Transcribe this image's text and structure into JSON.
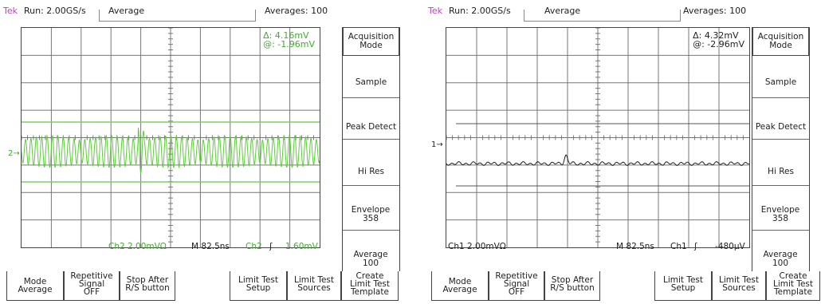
{
  "scopes": [
    {
      "header": {
        "brand": "Tek",
        "run": "Run: 2.00GS/s",
        "mode": "Average",
        "averages": "Averages: 100"
      },
      "measurement": {
        "delta": "Δ: 4.16mV",
        "at": "@: -1.96mV"
      },
      "status": {
        "channel": "Ch2  2.00mVΩ",
        "timebase": "M 82.5ns",
        "trigger_src": "Ch2",
        "trigger_sym": "ʃ",
        "trigger_level": "1.60mV"
      },
      "channel_marker": "2→",
      "side_menu": [
        "Acquisition Mode",
        "Sample",
        "Peak Detect",
        "Hi Res",
        "Envelope 358",
        "Average 100"
      ],
      "bottom_menu": [
        [
          "Mode",
          "Average"
        ],
        [
          "Repetitive",
          "Signal",
          "OFF"
        ],
        [
          "Stop After",
          "R/S button"
        ],
        [
          "Limit Test",
          "Setup"
        ],
        [
          "Limit Test",
          "Sources"
        ],
        [
          "Create",
          "Limit Test",
          "Template"
        ]
      ],
      "colors": {
        "trace": "#5dcc3a",
        "text": "#44aa33",
        "cursor": "#7fcf6a"
      }
    },
    {
      "header": {
        "brand": "Tek",
        "run": "Run: 2.00GS/s",
        "mode": "Average",
        "averages": "Averages: 100"
      },
      "measurement": {
        "delta": "Δ: 4.32mV",
        "at": "@: -2.96mV"
      },
      "status": {
        "channel": "Ch1  2.00mVΩ",
        "timebase": "M 82.5ns",
        "trigger_src": "Ch1",
        "trigger_sym": "ʃ",
        "trigger_level": "-480µV"
      },
      "channel_marker": "1→",
      "side_menu": [
        "Acquisition Mode",
        "Sample",
        "Peak Detect",
        "Hi Res",
        "Envelope 358",
        "Average 100"
      ],
      "bottom_menu": [
        [
          "Mode",
          "Average"
        ],
        [
          "Repetitive",
          "Signal",
          "OFF"
        ],
        [
          "Stop After",
          "R/S button"
        ],
        [
          "Limit Test",
          "Setup"
        ],
        [
          "Limit Test",
          "Sources"
        ],
        [
          "Create",
          "Limit Test",
          "Template"
        ]
      ],
      "colors": {
        "trace": "#222222",
        "text": "#222222",
        "cursor": "#555555"
      }
    }
  ]
}
